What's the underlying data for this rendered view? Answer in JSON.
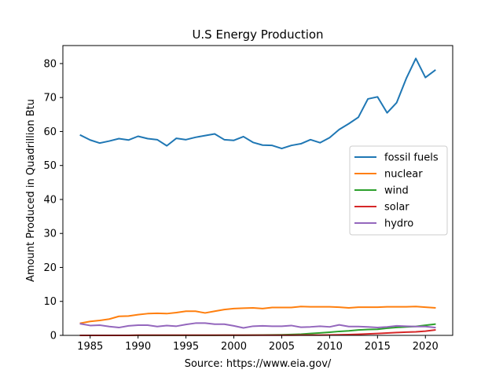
{
  "chart_data": {
    "type": "line",
    "title": "U.S Energy Production",
    "xlabel": "Source: https://www.eia.gov/",
    "ylabel": "Amount Produced in Quadrillion Btu",
    "xlim": [
      1982.15,
      2022.85
    ],
    "ylim": [
      0,
      85.3
    ],
    "grid": false,
    "legend_position": "center-right",
    "x_ticks": [
      1985,
      1990,
      1995,
      2000,
      2005,
      2010,
      2015,
      2020
    ],
    "y_ticks": [
      0,
      10,
      20,
      30,
      40,
      50,
      60,
      70,
      80
    ],
    "x": [
      1984,
      1985,
      1986,
      1987,
      1988,
      1989,
      1990,
      1991,
      1992,
      1993,
      1994,
      1995,
      1996,
      1997,
      1998,
      1999,
      2000,
      2001,
      2002,
      2003,
      2004,
      2005,
      2006,
      2007,
      2008,
      2009,
      2010,
      2011,
      2012,
      2013,
      2014,
      2015,
      2016,
      2017,
      2018,
      2019,
      2020,
      2021
    ],
    "series": [
      {
        "name": "fossil fuels",
        "color": "#1f77b4",
        "values": [
          58.9,
          57.5,
          56.6,
          57.2,
          57.9,
          57.5,
          58.6,
          57.9,
          57.6,
          55.8,
          58.0,
          57.6,
          58.3,
          58.8,
          59.3,
          57.6,
          57.4,
          58.5,
          56.8,
          56.0,
          55.9,
          55.0,
          55.9,
          56.4,
          57.6,
          56.7,
          58.2,
          60.6,
          62.3,
          64.2,
          69.6,
          70.2,
          65.5,
          68.5,
          75.6,
          81.5,
          75.9,
          78.0
        ]
      },
      {
        "name": "nuclear",
        "color": "#ff7f0e",
        "values": [
          3.6,
          4.1,
          4.4,
          4.8,
          5.6,
          5.7,
          6.1,
          6.4,
          6.5,
          6.4,
          6.7,
          7.1,
          7.1,
          6.6,
          7.1,
          7.6,
          7.9,
          8.0,
          8.1,
          7.9,
          8.2,
          8.2,
          8.2,
          8.5,
          8.4,
          8.4,
          8.4,
          8.3,
          8.1,
          8.3,
          8.3,
          8.3,
          8.4,
          8.4,
          8.4,
          8.5,
          8.3,
          8.1
        ]
      },
      {
        "name": "wind",
        "color": "#2ca02c",
        "values": [
          0.0,
          0.0,
          0.0,
          0.0,
          0.0,
          0.0,
          0.03,
          0.03,
          0.03,
          0.03,
          0.04,
          0.03,
          0.03,
          0.03,
          0.03,
          0.05,
          0.06,
          0.07,
          0.1,
          0.12,
          0.14,
          0.18,
          0.26,
          0.34,
          0.55,
          0.72,
          0.92,
          1.17,
          1.34,
          1.6,
          1.73,
          1.78,
          2.1,
          2.34,
          2.48,
          2.63,
          2.98,
          3.3
        ]
      },
      {
        "name": "solar",
        "color": "#d62728",
        "values": [
          0.0,
          0.0,
          0.0,
          0.0,
          0.0,
          0.0,
          0.06,
          0.06,
          0.06,
          0.07,
          0.07,
          0.07,
          0.07,
          0.07,
          0.07,
          0.07,
          0.06,
          0.06,
          0.06,
          0.06,
          0.06,
          0.06,
          0.07,
          0.08,
          0.09,
          0.1,
          0.13,
          0.17,
          0.23,
          0.33,
          0.43,
          0.55,
          0.7,
          0.83,
          0.95,
          1.05,
          1.25,
          1.6
        ]
      },
      {
        "name": "hydro",
        "color": "#9467bd",
        "values": [
          3.4,
          2.9,
          3.0,
          2.6,
          2.3,
          2.8,
          3.0,
          3.0,
          2.6,
          2.9,
          2.7,
          3.2,
          3.6,
          3.6,
          3.3,
          3.3,
          2.8,
          2.2,
          2.7,
          2.8,
          2.7,
          2.7,
          2.9,
          2.4,
          2.5,
          2.7,
          2.5,
          3.1,
          2.6,
          2.6,
          2.5,
          2.3,
          2.5,
          2.8,
          2.7,
          2.6,
          2.6,
          2.3
        ]
      }
    ]
  }
}
